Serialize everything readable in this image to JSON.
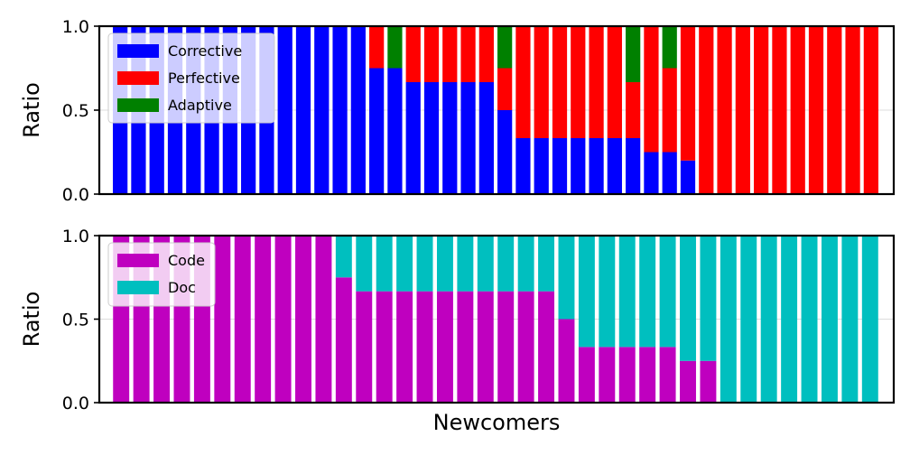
{
  "chart_data": [
    {
      "type": "bar",
      "stacked": true,
      "xlabel": "",
      "ylabel": "Ratio",
      "ylim": [
        0,
        1
      ],
      "yticks": [
        "0.0",
        "0.5",
        "1.0"
      ],
      "grid": true,
      "legend_position": "top-left",
      "series": [
        {
          "name": "Corrective",
          "color": "#0000ff",
          "values": [
            1,
            1,
            1,
            1,
            1,
            1,
            1,
            1,
            1,
            1,
            1,
            1,
            1,
            1,
            0.75,
            0.75,
            0.6667,
            0.6667,
            0.6667,
            0.6667,
            0.6667,
            0.5,
            0.3333,
            0.3333,
            0.3333,
            0.3333,
            0.3333,
            0.3333,
            0.3333,
            0.25,
            0.25,
            0.2,
            0,
            0,
            0,
            0,
            0,
            0,
            0,
            0,
            0,
            0
          ]
        },
        {
          "name": "Perfective",
          "color": "#ff0000",
          "values": [
            0,
            0,
            0,
            0,
            0,
            0,
            0,
            0,
            0,
            0,
            0,
            0,
            0,
            0,
            0.25,
            0,
            0.3333,
            0.3333,
            0.3333,
            0.3333,
            0.3333,
            0.25,
            0.6667,
            0.6667,
            0.6667,
            0.6667,
            0.6667,
            0.6667,
            0.3333,
            0.75,
            0.5,
            0.8,
            1,
            1,
            1,
            1,
            1,
            1,
            1,
            1,
            1,
            1
          ]
        },
        {
          "name": "Adaptive",
          "color": "#008000",
          "values": [
            0,
            0,
            0,
            0,
            0,
            0,
            0,
            0,
            0,
            0,
            0,
            0,
            0,
            0,
            0,
            0.25,
            0,
            0,
            0,
            0,
            0,
            0.25,
            0,
            0,
            0,
            0,
            0,
            0,
            0.3333,
            0,
            0.25,
            0,
            0,
            0,
            0,
            0,
            0,
            0,
            0,
            0,
            0,
            0
          ]
        }
      ]
    },
    {
      "type": "bar",
      "stacked": true,
      "xlabel": "Newcomers",
      "ylabel": "Ratio",
      "ylim": [
        0,
        1
      ],
      "yticks": [
        "0.0",
        "0.5",
        "1.0"
      ],
      "grid": true,
      "legend_position": "top-left",
      "series": [
        {
          "name": "Code",
          "color": "#bf00bf",
          "values": [
            1,
            1,
            1,
            1,
            1,
            1,
            1,
            1,
            1,
            1,
            1,
            0.75,
            0.6667,
            0.6667,
            0.6667,
            0.6667,
            0.6667,
            0.6667,
            0.6667,
            0.6667,
            0.6667,
            0.6667,
            0.5,
            0.3333,
            0.3333,
            0.3333,
            0.3333,
            0.3333,
            0.25,
            0.25,
            0,
            0,
            0,
            0,
            0,
            0,
            0,
            0
          ]
        },
        {
          "name": "Doc",
          "color": "#00bfbf",
          "values": [
            0,
            0,
            0,
            0,
            0,
            0,
            0,
            0,
            0,
            0,
            0,
            0.25,
            0.3333,
            0.3333,
            0.3333,
            0.3333,
            0.3333,
            0.3333,
            0.3333,
            0.3333,
            0.3333,
            0.3333,
            0.5,
            0.6667,
            0.6667,
            0.6667,
            0.6667,
            0.6667,
            0.75,
            0.75,
            1,
            1,
            1,
            1,
            1,
            1,
            1,
            1
          ]
        }
      ]
    }
  ]
}
